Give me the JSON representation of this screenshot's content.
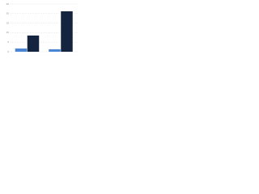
{
  "chart_data": {
    "type": "bar",
    "categories": [
      null,
      null
    ],
    "series": [
      {
        "color": "#4a86d4",
        "values": [
          1.7,
          1.3
        ]
      },
      {
        "color": "#14243f",
        "values": [
          8.5,
          21.2
        ]
      }
    ],
    "ylim": [
      0,
      25
    ],
    "yticks": [
      0,
      5,
      10,
      15,
      20,
      25
    ],
    "grid": true
  }
}
